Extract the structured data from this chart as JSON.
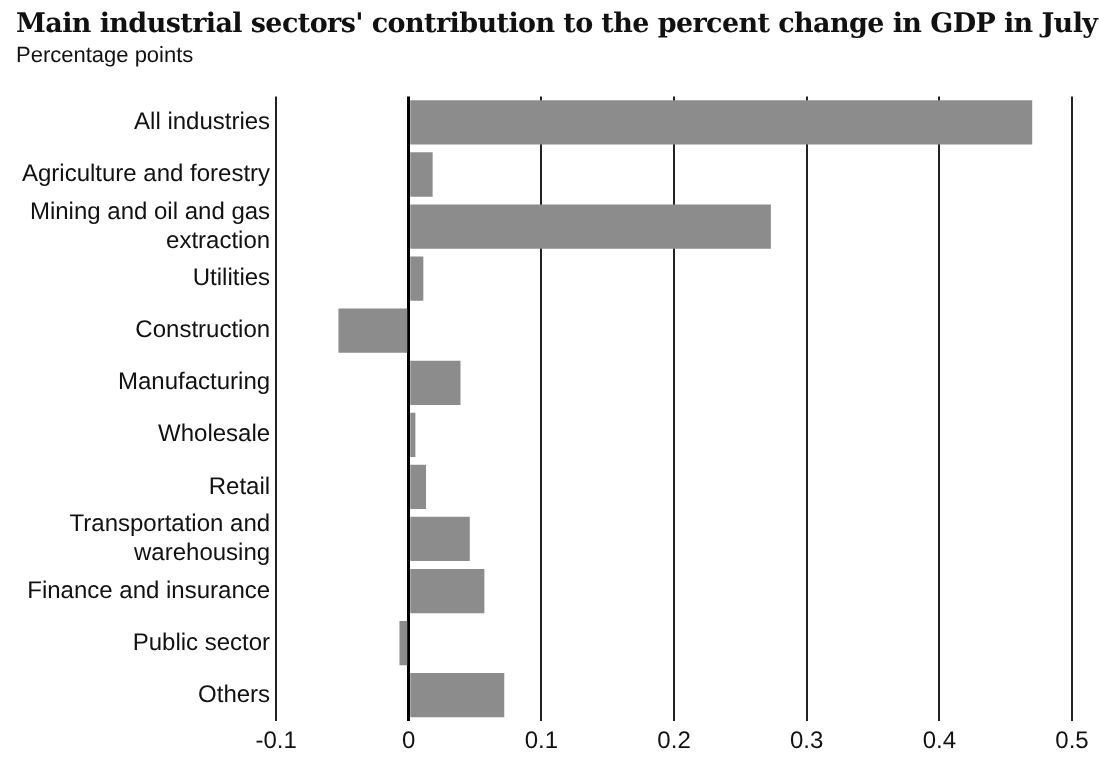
{
  "chart_data": {
    "type": "bar",
    "orientation": "horizontal",
    "title": "Main industrial sectors' contribution to the percent change in GDP in July",
    "subtitle": "Percentage points",
    "categories": [
      "All industries",
      "Agriculture and forestry",
      "Mining and oil and gas extraction",
      "Utilities",
      "Construction",
      "Manufacturing",
      "Wholesale",
      "Retail",
      "Transportation and warehousing",
      "Finance and insurance",
      "Public sector",
      "Others"
    ],
    "values": [
      0.47,
      0.018,
      0.273,
      0.011,
      -0.053,
      0.039,
      0.005,
      0.013,
      0.046,
      0.057,
      -0.007,
      0.072
    ],
    "color": "#8c8c8c",
    "xlim": [
      -0.1,
      0.5
    ],
    "xticks": [
      -0.1,
      0,
      0.1,
      0.2,
      0.3,
      0.4,
      0.5
    ],
    "grid": "x"
  }
}
